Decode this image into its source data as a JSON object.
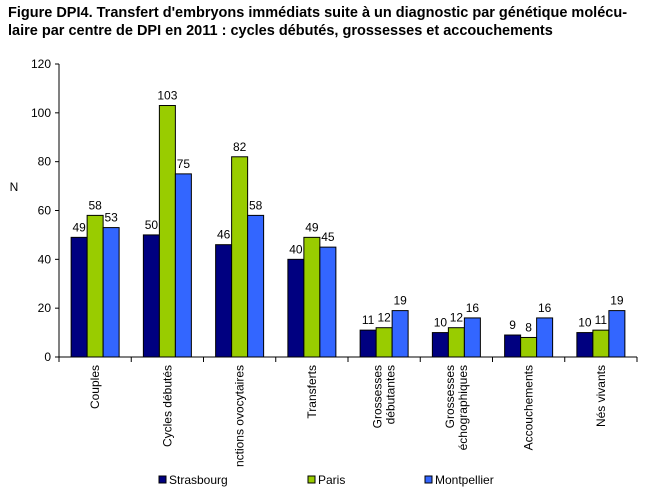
{
  "chart_data": {
    "type": "bar",
    "title_lines": [
      "Figure DPI4. Transfert d'embryons immédiats suite à un diagnostic par génétique molécu-",
      "laire par centre de DPI en 2011 : cycles débutés, grossesses et accouchements"
    ],
    "ylabel": "N",
    "xlabel": "",
    "ylim": [
      0,
      120
    ],
    "yticks": [
      0,
      20,
      40,
      60,
      80,
      100,
      120
    ],
    "grid": false,
    "legend_position": "bottom",
    "categories": [
      [
        "Couples"
      ],
      [
        "Cycles débutés"
      ],
      [
        "nctions ovocytaires"
      ],
      [
        "Transferts"
      ],
      [
        "Grossesses",
        "débutantes"
      ],
      [
        "Grossesses",
        "échographiques"
      ],
      [
        "Accouchements"
      ],
      [
        "Nés vivants"
      ]
    ],
    "series": [
      {
        "name": "Strasbourg",
        "color": "#000080",
        "values": [
          49,
          50,
          46,
          40,
          11,
          10,
          9,
          10
        ]
      },
      {
        "name": "Paris",
        "color": "#99CC00",
        "values": [
          58,
          103,
          82,
          49,
          12,
          12,
          8,
          11
        ]
      },
      {
        "name": "Montpellier",
        "color": "#3366FF",
        "values": [
          53,
          75,
          58,
          45,
          19,
          16,
          16,
          19
        ]
      }
    ]
  }
}
